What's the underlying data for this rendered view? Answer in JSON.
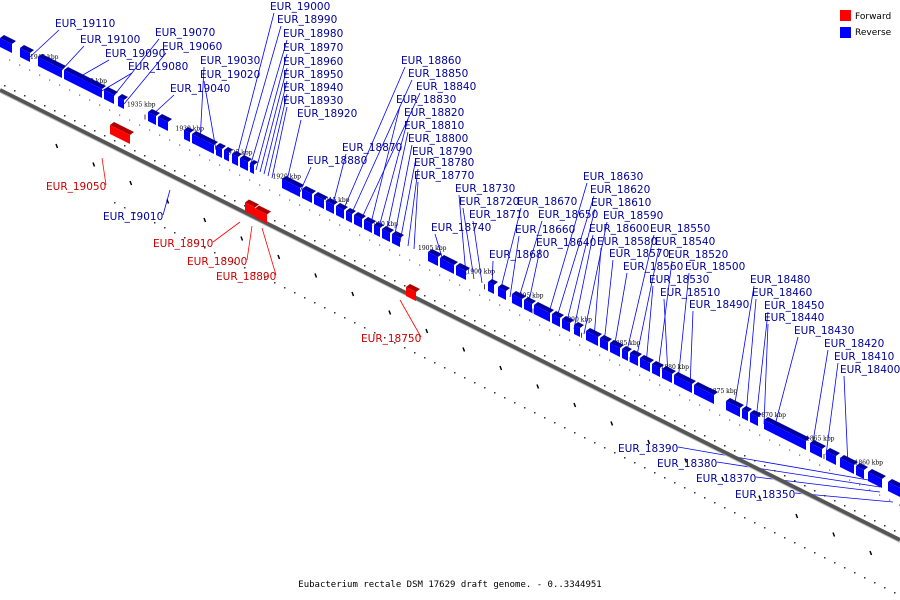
{
  "caption": "Eubacterium rectale DSM 17629 draft genome. - 0..3344951",
  "legend": [
    {
      "label": "Forward",
      "color": "#ff0000"
    },
    {
      "label": "Reverse",
      "color": "#0000ff"
    }
  ],
  "colors": {
    "forward": "#ff0000",
    "forward_dark": "#b00000",
    "reverse": "#0000ff",
    "reverse_dark": "#0000a0",
    "forward_label": "#cc0000",
    "reverse_label": "#000099",
    "backbone": "#555555"
  },
  "kbp_ticks": [
    "1945 kbp",
    "1940 kbp",
    "1935 kbp",
    "1930 kbp",
    "1925 kbp",
    "1920 kbp",
    "1915 kbp",
    "1910 kbp",
    "1905 kbp",
    "1900 kbp",
    "1895 kbp",
    "1890 kbp",
    "1885 kbp",
    "1880 kbp",
    "1875 kbp",
    "1870 kbp",
    "1865 kbp",
    "1860 kbp"
  ],
  "reverse_genes": [
    "EUR_19110",
    "EUR_19100",
    "EUR_19090",
    "EUR_19080",
    "EUR_19070",
    "EUR_19060",
    "EUR_19040",
    "EUR_19030",
    "EUR_19020",
    "EUR_19000",
    "EUR_18990",
    "EUR_18980",
    "EUR_18970",
    "EUR_18960",
    "EUR_18950",
    "EUR_18940",
    "EUR_18930",
    "EUR_18920",
    "EUR_18880",
    "EUR_18870",
    "EUR_18860",
    "EUR_18850",
    "EUR_18840",
    "EUR_18830",
    "EUR_18820",
    "EUR_18810",
    "EUR_18800",
    "EUR_18790",
    "EUR_18780",
    "EUR_18770",
    "EUR_18740",
    "EUR_18730",
    "EUR_18720",
    "EUR_18710",
    "EUR_18680",
    "EUR_18670",
    "EUR_18660",
    "EUR_18650",
    "EUR_18640",
    "EUR_18630",
    "EUR_18620",
    "EUR_18610",
    "EUR_18600",
    "EUR_18590",
    "EUR_18580",
    "EUR_18570",
    "EUR_18560",
    "EUR_18550",
    "EUR_18540",
    "EUR_18530",
    "EUR_18520",
    "EUR_18510",
    "EUR_18500",
    "EUR_18490",
    "EUR_18480",
    "EUR_18460",
    "EUR_18450",
    "EUR_18440",
    "EUR_18430",
    "EUR_18420",
    "EUR_18410",
    "EUR_18400"
  ],
  "lower_labels": [
    {
      "label": "EUR_19050",
      "strand": "forward"
    },
    {
      "label": "EUR_19010",
      "strand": "reverse"
    },
    {
      "label": "EUR_18910",
      "strand": "forward"
    },
    {
      "label": "EUR_18900",
      "strand": "forward"
    },
    {
      "label": "EUR_18890",
      "strand": "forward"
    },
    {
      "label": "EUR_18750",
      "strand": "forward"
    },
    {
      "label": "EUR_18390",
      "strand": "reverse"
    },
    {
      "label": "EUR_18380",
      "strand": "reverse"
    },
    {
      "label": "EUR_18370",
      "strand": "reverse"
    },
    {
      "label": "EUR_18350",
      "strand": "reverse"
    }
  ]
}
